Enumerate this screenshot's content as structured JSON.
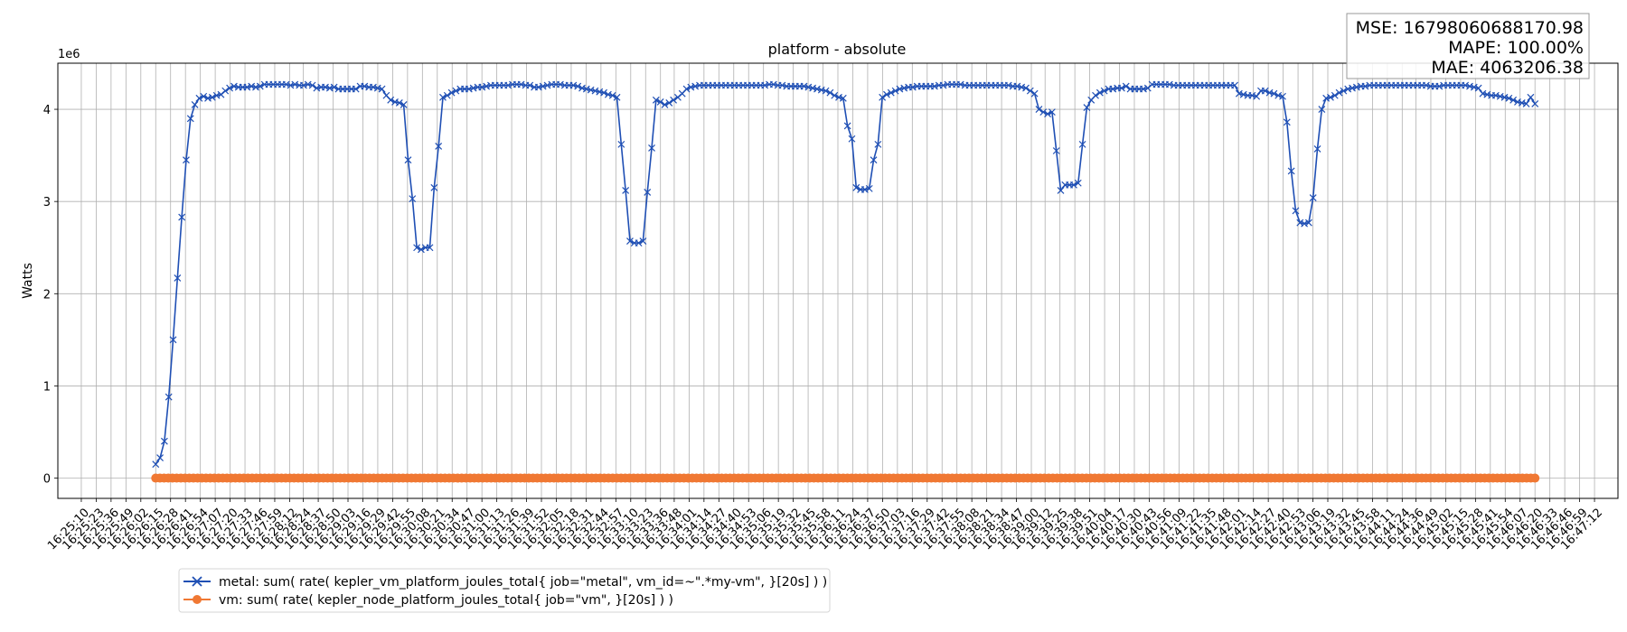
{
  "chart_data": {
    "type": "line",
    "title": "platform - absolute",
    "ylabel": "Watts",
    "y_scale_label": "1e6",
    "ylim": [
      -0.22,
      4.5
    ],
    "y_ticks": [
      0,
      1,
      2,
      3,
      4
    ],
    "x_tick_labels": [
      "16:25:10",
      "16:25:23",
      "16:25:36",
      "16:25:49",
      "16:26:02",
      "16:26:15",
      "16:26:28",
      "16:26:41",
      "16:26:54",
      "16:27:07",
      "16:27:20",
      "16:27:33",
      "16:27:46",
      "16:27:59",
      "16:28:12",
      "16:28:24",
      "16:28:37",
      "16:28:50",
      "16:29:03",
      "16:29:16",
      "16:29:29",
      "16:29:42",
      "16:29:55",
      "16:30:08",
      "16:30:21",
      "16:30:34",
      "16:30:47",
      "16:31:00",
      "16:31:13",
      "16:31:26",
      "16:31:39",
      "16:31:52",
      "16:32:05",
      "16:32:18",
      "16:32:31",
      "16:32:44",
      "16:32:57",
      "16:33:10",
      "16:33:23",
      "16:33:36",
      "16:33:48",
      "16:34:01",
      "16:34:14",
      "16:34:27",
      "16:34:40",
      "16:34:53",
      "16:35:06",
      "16:35:19",
      "16:35:32",
      "16:35:45",
      "16:35:58",
      "16:36:11",
      "16:36:24",
      "16:36:37",
      "16:36:50",
      "16:37:03",
      "16:37:16",
      "16:37:29",
      "16:37:42",
      "16:37:55",
      "16:38:08",
      "16:38:21",
      "16:38:34",
      "16:38:47",
      "16:39:00",
      "16:39:12",
      "16:39:25",
      "16:39:38",
      "16:39:51",
      "16:40:04",
      "16:40:17",
      "16:40:30",
      "16:40:43",
      "16:40:56",
      "16:41:09",
      "16:41:22",
      "16:41:35",
      "16:41:48",
      "16:42:01",
      "16:42:14",
      "16:42:27",
      "16:42:40",
      "16:42:53",
      "16:43:06",
      "16:43:19",
      "16:43:32",
      "16:43:45",
      "16:43:58",
      "16:44:11",
      "16:44:24",
      "16:44:36",
      "16:44:49",
      "16:45:02",
      "16:45:15",
      "16:45:28",
      "16:45:41",
      "16:45:54",
      "16:46:07",
      "16:46:20",
      "16:46:33",
      "16:46:46",
      "16:46:59",
      "16:47:12"
    ],
    "x_start": "16:26:15",
    "x_end": "16:46:20",
    "grid": true,
    "legend_position": "bottom-left",
    "series": [
      {
        "name": "metal: sum( rate( kepler_vm_platform_joules_total{ job=\"metal\", vm_id=~\".*my-vm\", }[20s] ) )",
        "color": "#1f4fb4",
        "marker": "x",
        "values": [
          0.15,
          0.22,
          0.4,
          0.88,
          1.5,
          2.17,
          2.83,
          3.45,
          3.9,
          4.05,
          4.12,
          4.14,
          4.12,
          4.13,
          4.15,
          4.16,
          4.2,
          4.23,
          4.25,
          4.24,
          4.24,
          4.24,
          4.25,
          4.24,
          4.25,
          4.27,
          4.27,
          4.27,
          4.27,
          4.27,
          4.27,
          4.26,
          4.27,
          4.26,
          4.26,
          4.27,
          4.26,
          4.23,
          4.24,
          4.24,
          4.23,
          4.24,
          4.22,
          4.22,
          4.22,
          4.22,
          4.22,
          4.25,
          4.25,
          4.24,
          4.24,
          4.23,
          4.22,
          4.15,
          4.1,
          4.08,
          4.07,
          4.05,
          3.45,
          3.03,
          2.5,
          2.48,
          2.5,
          2.5,
          3.15,
          3.6,
          4.13,
          4.15,
          4.18,
          4.2,
          4.22,
          4.22,
          4.22,
          4.23,
          4.24,
          4.24,
          4.25,
          4.26,
          4.26,
          4.26,
          4.26,
          4.26,
          4.27,
          4.27,
          4.27,
          4.26,
          4.26,
          4.24,
          4.24,
          4.25,
          4.26,
          4.27,
          4.27,
          4.27,
          4.26,
          4.26,
          4.26,
          4.25,
          4.23,
          4.22,
          4.21,
          4.2,
          4.19,
          4.18,
          4.16,
          4.15,
          4.13,
          3.62,
          3.12,
          2.57,
          2.55,
          2.55,
          2.57,
          3.1,
          3.58,
          4.1,
          4.08,
          4.05,
          4.07,
          4.1,
          4.13,
          4.17,
          4.22,
          4.24,
          4.25,
          4.26,
          4.26,
          4.26,
          4.26,
          4.26,
          4.26,
          4.26,
          4.26,
          4.26,
          4.26,
          4.26,
          4.26,
          4.26,
          4.26,
          4.26,
          4.26,
          4.27,
          4.27,
          4.26,
          4.26,
          4.25,
          4.25,
          4.25,
          4.25,
          4.25,
          4.24,
          4.23,
          4.22,
          4.21,
          4.2,
          4.18,
          4.15,
          4.13,
          4.12,
          3.82,
          3.68,
          3.15,
          3.13,
          3.13,
          3.14,
          3.45,
          3.62,
          4.13,
          4.16,
          4.18,
          4.2,
          4.22,
          4.23,
          4.24,
          4.24,
          4.25,
          4.25,
          4.25,
          4.25,
          4.25,
          4.26,
          4.26,
          4.27,
          4.27,
          4.27,
          4.27,
          4.26,
          4.26,
          4.26,
          4.26,
          4.26,
          4.26,
          4.26,
          4.26,
          4.26,
          4.26,
          4.26,
          4.25,
          4.25,
          4.24,
          4.23,
          4.2,
          4.17,
          4.0,
          3.97,
          3.95,
          3.97,
          3.55,
          3.12,
          3.18,
          3.18,
          3.18,
          3.2,
          3.62,
          4.02,
          4.1,
          4.15,
          4.18,
          4.2,
          4.22,
          4.22,
          4.23,
          4.23,
          4.25,
          4.22,
          4.22,
          4.22,
          4.22,
          4.23,
          4.27,
          4.27,
          4.27,
          4.27,
          4.27,
          4.26,
          4.26,
          4.26,
          4.26,
          4.26,
          4.26,
          4.26,
          4.26,
          4.26,
          4.26,
          4.26,
          4.26,
          4.26,
          4.26,
          4.26,
          4.17,
          4.16,
          4.15,
          4.15,
          4.14,
          4.2,
          4.2,
          4.18,
          4.17,
          4.15,
          4.14,
          3.86,
          3.33,
          2.9,
          2.77,
          2.76,
          2.77,
          3.04,
          3.57,
          4.0,
          4.12,
          4.13,
          4.15,
          4.18,
          4.2,
          4.22,
          4.23,
          4.24,
          4.25,
          4.25,
          4.26,
          4.26,
          4.26,
          4.26,
          4.26,
          4.26,
          4.26,
          4.26,
          4.26,
          4.26,
          4.26,
          4.26,
          4.26,
          4.26,
          4.25,
          4.25,
          4.25,
          4.26,
          4.26,
          4.26,
          4.26,
          4.26,
          4.26,
          4.25,
          4.24,
          4.23,
          4.17,
          4.16,
          4.15,
          4.15,
          4.14,
          4.13,
          4.12,
          4.1,
          4.08,
          4.07,
          4.06,
          4.13,
          4.06
        ]
      },
      {
        "name": "vm: sum( rate( kepler_node_platform_joules_total{ job=\"vm\", }[20s] ) )",
        "color": "#f07833",
        "marker": "o",
        "values": [
          0,
          0,
          0,
          0,
          0,
          0,
          0,
          0,
          0,
          0,
          0,
          0,
          0,
          0,
          0,
          0,
          0,
          0,
          0,
          0,
          0,
          0,
          0,
          0,
          0,
          0,
          0,
          0,
          0,
          0,
          0,
          0,
          0,
          0,
          0,
          0,
          0,
          0,
          0,
          0,
          0,
          0,
          0,
          0,
          0,
          0,
          0,
          0,
          0,
          0,
          0,
          0,
          0,
          0,
          0,
          0,
          0,
          0,
          0,
          0,
          0,
          0,
          0,
          0,
          0,
          0,
          0,
          0,
          0,
          0,
          0,
          0,
          0,
          0,
          0,
          0,
          0,
          0,
          0,
          0,
          0,
          0,
          0,
          0,
          0,
          0,
          0,
          0,
          0,
          0,
          0,
          0,
          0,
          0,
          0,
          0,
          0,
          0,
          0,
          0,
          0,
          0,
          0,
          0,
          0,
          0,
          0,
          0,
          0,
          0,
          0,
          0,
          0,
          0,
          0,
          0,
          0,
          0,
          0,
          0,
          0,
          0,
          0,
          0,
          0,
          0,
          0,
          0,
          0,
          0,
          0,
          0,
          0,
          0,
          0,
          0,
          0,
          0,
          0,
          0,
          0,
          0,
          0,
          0,
          0,
          0,
          0,
          0,
          0,
          0,
          0,
          0,
          0,
          0,
          0,
          0,
          0,
          0,
          0,
          0,
          0,
          0,
          0,
          0,
          0,
          0,
          0,
          0,
          0,
          0,
          0,
          0,
          0,
          0,
          0,
          0,
          0,
          0,
          0,
          0,
          0,
          0,
          0,
          0,
          0,
          0,
          0,
          0,
          0,
          0,
          0,
          0,
          0,
          0,
          0,
          0,
          0,
          0,
          0,
          0,
          0,
          0,
          0,
          0,
          0,
          0,
          0,
          0,
          0,
          0,
          0,
          0,
          0,
          0,
          0,
          0,
          0,
          0,
          0,
          0,
          0,
          0,
          0,
          0,
          0,
          0,
          0,
          0,
          0,
          0,
          0,
          0,
          0,
          0,
          0,
          0,
          0,
          0,
          0,
          0,
          0,
          0,
          0,
          0,
          0,
          0,
          0,
          0,
          0,
          0,
          0,
          0,
          0,
          0,
          0,
          0,
          0,
          0,
          0,
          0,
          0,
          0,
          0,
          0,
          0,
          0,
          0,
          0,
          0,
          0,
          0,
          0,
          0,
          0,
          0,
          0,
          0,
          0,
          0,
          0,
          0,
          0,
          0,
          0,
          0,
          0,
          0,
          0,
          0,
          0,
          0,
          0,
          0,
          0,
          0,
          0,
          0,
          0,
          0,
          0,
          0,
          0,
          0,
          0,
          0,
          0,
          0,
          0,
          0,
          0,
          0,
          0,
          0,
          0,
          0,
          0,
          0,
          0,
          0,
          0,
          0,
          0,
          0,
          0,
          0,
          0,
          0,
          0,
          0,
          0
        ]
      }
    ],
    "stats": [
      "MSE: 16798060688170.98",
      "MAPE: 100.00%",
      "MAE: 4063206.38"
    ]
  }
}
